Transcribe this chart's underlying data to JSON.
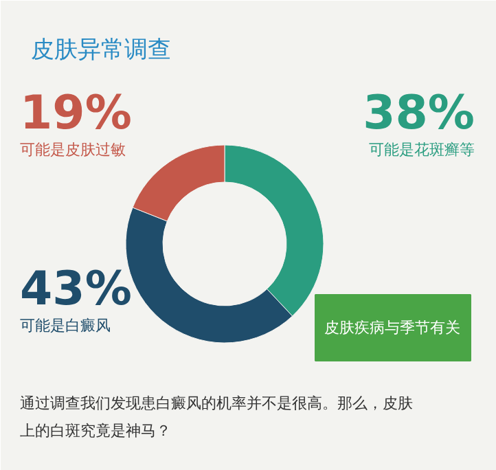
{
  "chart_data": {
    "type": "donut",
    "title": "皮肤异常调查",
    "categories": [
      "可能是花斑癣等",
      "可能是白癜风",
      "可能是皮肤过敏"
    ],
    "values": [
      38,
      43,
      19
    ],
    "value_labels": [
      "38%",
      "43%",
      "19%"
    ],
    "colors": [
      "#2a9d80",
      "#1f4d6b",
      "#c4584a"
    ],
    "annotations": [
      "皮肤疾病与季节有关",
      "通过调查我们发现患白癜风的机率并不是很高。那么，皮肤上的白斑究竟是神马？"
    ]
  }
}
